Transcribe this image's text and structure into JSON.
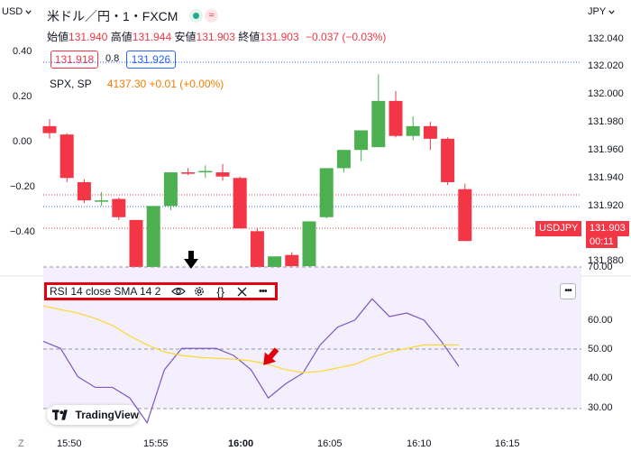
{
  "header": {
    "currency_selector": "USD",
    "symbol_title": "米ドル／円・1・FXCM",
    "quote_currency": "JPY"
  },
  "ohlc": {
    "open_label": "始値",
    "open_value": "131.940",
    "high_label": "高値",
    "high_value": "131.944",
    "low_label": "安値",
    "low_value": "131.903",
    "close_label": "終値",
    "close_value": "131.903",
    "change": "−0.037 (−0.03%)"
  },
  "trade": {
    "sell_price": "131.918",
    "spread": "0.8",
    "buy_price": "131.926"
  },
  "compare": {
    "symbol": "SPX, SP",
    "value": "4137.30 +0.01 (+0.00%)"
  },
  "left_axis": [
    "0.40",
    "0.20",
    "0.00",
    "−0.20",
    "−0.40"
  ],
  "right_axis": [
    "132.040",
    "132.020",
    "132.000",
    "131.980",
    "131.960",
    "131.940",
    "131.920",
    "131.880"
  ],
  "price_badge": {
    "symbol": "USDJPY",
    "price": "131.903",
    "countdown": "00:11"
  },
  "rsi": {
    "legend_text": "RSI 14 close SMA 14 2",
    "more_label": "•••",
    "axis": [
      "70.00",
      "60.00",
      "50.00",
      "40.00",
      "30.00"
    ]
  },
  "time_axis": [
    "15:50",
    "15:55",
    "16:00",
    "16:05",
    "16:10",
    "16:15"
  ],
  "corner_label": "Z",
  "brand": "TradingView",
  "colors": {
    "bull": "#4caf50",
    "bear": "#f23645",
    "rsi_line": "#7e57c2",
    "sma_line": "#fdd835",
    "highlight_box": "#e3000b"
  },
  "chart_data": {
    "type": "candlestick",
    "ylim": [
      131.878,
      132.048
    ],
    "candles": [
      {
        "t": "15:47",
        "o": 131.985,
        "h": 131.99,
        "l": 131.976,
        "c": 131.98
      },
      {
        "t": "15:48",
        "o": 131.979,
        "h": 131.98,
        "l": 131.945,
        "c": 131.948
      },
      {
        "t": "15:49",
        "o": 131.945,
        "h": 131.947,
        "l": 131.93,
        "c": 131.932
      },
      {
        "t": "15:50",
        "o": 131.932,
        "h": 131.938,
        "l": 131.928,
        "c": 131.932
      },
      {
        "t": "15:51",
        "o": 131.933,
        "h": 131.934,
        "l": 131.918,
        "c": 131.92
      },
      {
        "t": "15:52",
        "o": 131.918,
        "h": 131.918,
        "l": 131.87,
        "c": 131.87
      },
      {
        "t": "15:53",
        "o": 131.868,
        "h": 131.928,
        "l": 131.865,
        "c": 131.928
      },
      {
        "t": "15:54",
        "o": 131.928,
        "h": 131.952,
        "l": 131.925,
        "c": 131.952
      },
      {
        "t": "15:55",
        "o": 131.952,
        "h": 131.955,
        "l": 131.95,
        "c": 131.951
      },
      {
        "t": "15:56",
        "o": 131.952,
        "h": 131.957,
        "l": 131.948,
        "c": 131.953
      },
      {
        "t": "15:57",
        "o": 131.952,
        "h": 131.958,
        "l": 131.946,
        "c": 131.949
      },
      {
        "t": "15:58",
        "o": 131.948,
        "h": 131.949,
        "l": 131.912,
        "c": 131.912
      },
      {
        "t": "15:59",
        "o": 131.91,
        "h": 131.912,
        "l": 131.88,
        "c": 131.88
      },
      {
        "t": "16:00",
        "o": 131.88,
        "h": 131.892,
        "l": 131.875,
        "c": 131.892
      },
      {
        "t": "16:01",
        "o": 131.893,
        "h": 131.895,
        "l": 131.885,
        "c": 131.885
      },
      {
        "t": "16:02",
        "o": 131.885,
        "h": 131.917,
        "l": 131.883,
        "c": 131.917
      },
      {
        "t": "16:03",
        "o": 131.92,
        "h": 131.955,
        "l": 131.919,
        "c": 131.955
      },
      {
        "t": "16:04",
        "o": 131.955,
        "h": 131.968,
        "l": 131.952,
        "c": 131.968
      },
      {
        "t": "16:05",
        "o": 131.968,
        "h": 131.982,
        "l": 131.96,
        "c": 131.982
      },
      {
        "t": "16:06",
        "o": 131.97,
        "h": 132.022,
        "l": 131.97,
        "c": 132.003
      },
      {
        "t": "16:07",
        "o": 132.003,
        "h": 132.01,
        "l": 131.977,
        "c": 131.978
      },
      {
        "t": "16:08",
        "o": 131.978,
        "h": 131.992,
        "l": 131.975,
        "c": 131.985
      },
      {
        "t": "16:09",
        "o": 131.985,
        "h": 131.988,
        "l": 131.968,
        "c": 131.976
      },
      {
        "t": "16:10",
        "o": 131.976,
        "h": 131.977,
        "l": 131.943,
        "c": 131.945
      },
      {
        "t": "16:11",
        "o": 131.94,
        "h": 131.944,
        "l": 131.903,
        "c": 131.903
      }
    ],
    "rsi_ylim": [
      28,
      72
    ],
    "rsi_series": [
      {
        "name": "RSI",
        "x": [
          "15:47",
          "15:48",
          "15:49",
          "15:50",
          "15:51",
          "15:52",
          "15:53",
          "15:54",
          "15:55",
          "15:56",
          "15:57",
          "15:58",
          "15:59",
          "16:00",
          "16:01",
          "16:02",
          "16:03",
          "16:04",
          "16:05",
          "16:06",
          "16:07",
          "16:08",
          "16:09",
          "16:10",
          "16:11"
        ],
        "values": [
          49,
          47,
          39,
          36,
          36,
          33,
          26,
          41,
          47,
          47,
          47,
          45,
          41,
          33,
          37,
          40,
          48,
          53,
          55,
          61,
          56,
          57,
          55,
          49,
          42
        ]
      },
      {
        "name": "SMA",
        "x": [
          "15:47",
          "15:48",
          "15:49",
          "15:50",
          "15:51",
          "15:52",
          "15:53",
          "15:54",
          "15:55",
          "15:56",
          "15:57",
          "15:58",
          "15:59",
          "16:00",
          "16:01",
          "16:02",
          "16:03",
          "16:04",
          "16:05",
          "16:06",
          "16:07",
          "16:08",
          "16:09",
          "16:10",
          "16:11"
        ],
        "values": [
          59,
          58,
          57,
          55.5,
          53.5,
          50.5,
          48,
          46,
          45,
          44.5,
          44.2,
          44,
          43.5,
          42.5,
          41,
          40.2,
          40.5,
          41.5,
          42.5,
          44.5,
          46,
          47,
          48,
          48,
          48
        ]
      }
    ]
  }
}
